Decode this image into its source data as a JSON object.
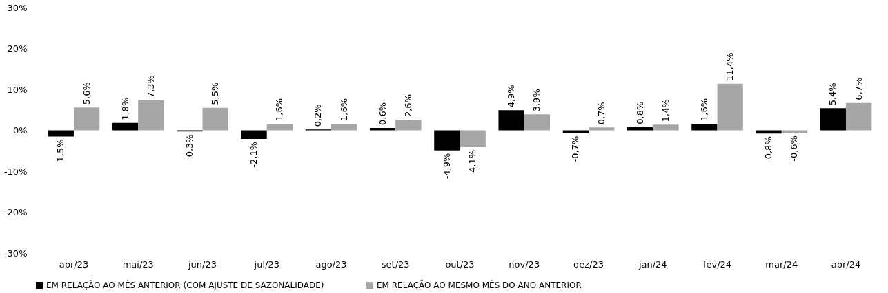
{
  "chart_data": {
    "type": "bar",
    "categories": [
      "abr/23",
      "mai/23",
      "jun/23",
      "jul/23",
      "ago/23",
      "set/23",
      "out/23",
      "nov/23",
      "dez/23",
      "jan/24",
      "fev/24",
      "mar/24",
      "abr/24"
    ],
    "series": [
      {
        "name": "EM RELAÇÃO AO MÊS ANTERIOR (COM AJUSTE DE SAZONALIDADE)",
        "color": "#000000",
        "values": [
          -1.5,
          1.8,
          -0.3,
          -2.1,
          0.2,
          0.6,
          -4.9,
          4.9,
          -0.7,
          0.8,
          1.6,
          -0.8,
          5.4
        ],
        "value_labels": [
          "-1,5%",
          "1,8%",
          "-0,3%",
          "-2,1%",
          "0,2%",
          "0,6%",
          "-4,9%",
          "4,9%",
          "-0,7%",
          "0,8%",
          "1,6%",
          "-0,8%",
          "5,4%"
        ]
      },
      {
        "name": "EM RELAÇÃO AO MESMO MÊS DO ANO ANTERIOR",
        "color": "#a6a6a6",
        "values": [
          5.6,
          7.3,
          5.5,
          1.6,
          1.6,
          2.6,
          -4.1,
          3.9,
          0.7,
          1.4,
          11.4,
          -0.6,
          6.7
        ],
        "value_labels": [
          "5,6%",
          "7,3%",
          "5,5%",
          "1,6%",
          "1,6%",
          "2,6%",
          "-4,1%",
          "3,9%",
          "0,7%",
          "1,4%",
          "11,4%",
          "-0,6%",
          "6,7%"
        ]
      }
    ],
    "ylim": [
      -30,
      30
    ],
    "yticks": [
      {
        "value": -30,
        "label": "-30%"
      },
      {
        "value": -20,
        "label": "-20%"
      },
      {
        "value": -10,
        "label": "-10%"
      },
      {
        "value": 0,
        "label": "0%"
      },
      {
        "value": 10,
        "label": "10%"
      },
      {
        "value": 20,
        "label": "20%"
      },
      {
        "value": 30,
        "label": "30%"
      }
    ],
    "grid": false,
    "legend": "bottom"
  }
}
